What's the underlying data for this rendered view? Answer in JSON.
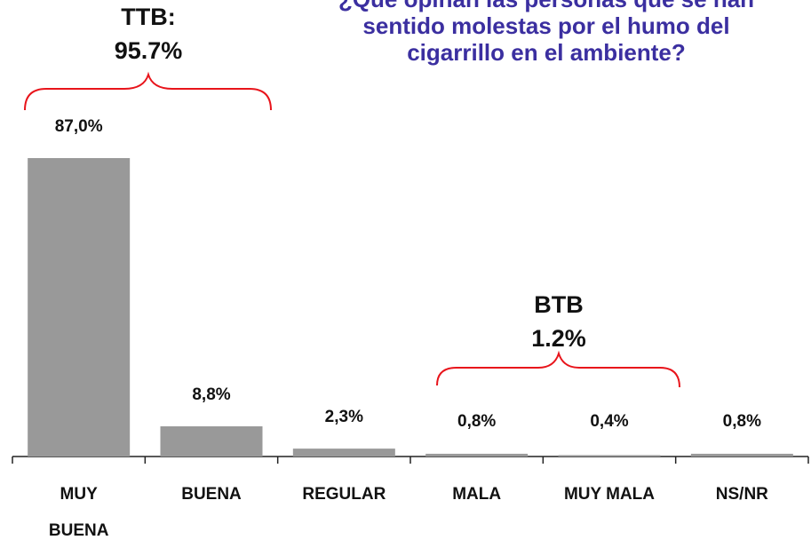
{
  "chart_data": {
    "type": "bar",
    "title": "¿Qué opinan las personas que se han sentido molestas por el humo del cigarrillo en el ambiente?",
    "categories": [
      "MUY BUENA",
      "BUENA",
      "REGULAR",
      "MALA",
      "MUY MALA",
      "NS/NR"
    ],
    "values": [
      87.0,
      8.8,
      2.3,
      0.8,
      0.4,
      0.8
    ],
    "value_labels": [
      "87,0%",
      "8,8%",
      "2,3%",
      "0,8%",
      "0,4%",
      "0,8%"
    ],
    "color": "#999999",
    "annotations": [
      "TTB:",
      "95.7%",
      "BTB",
      "1.2%"
    ]
  }
}
